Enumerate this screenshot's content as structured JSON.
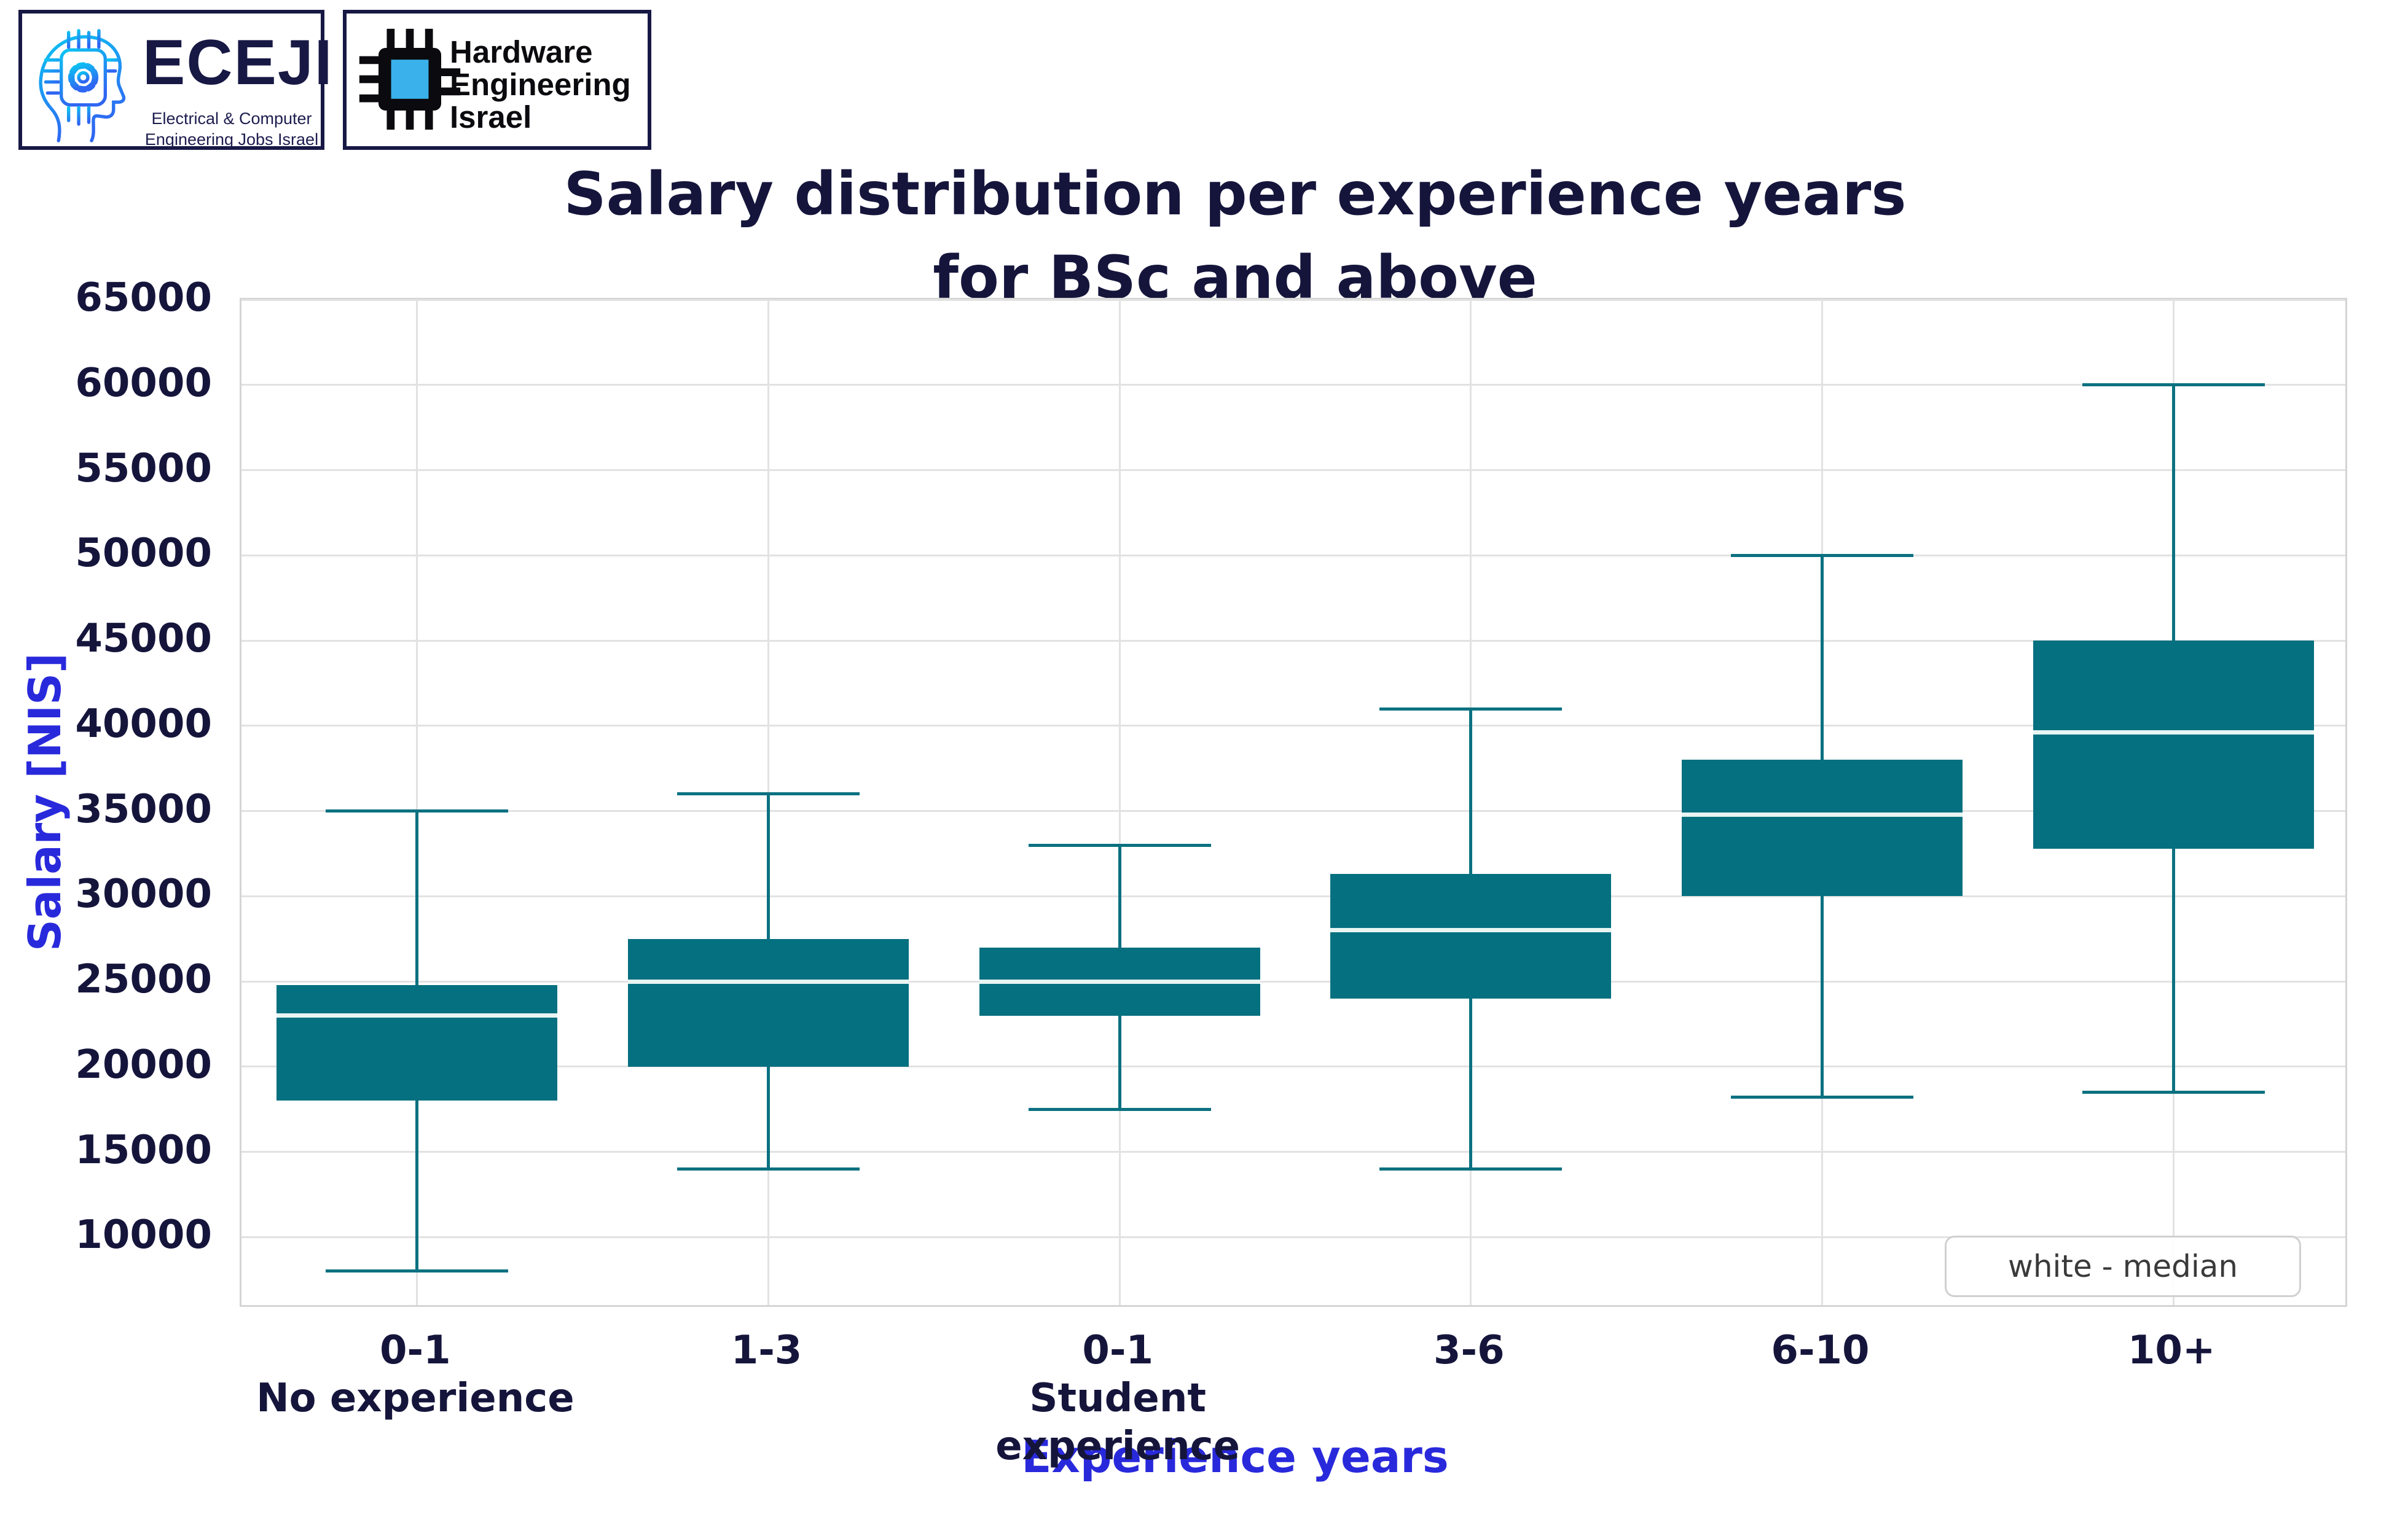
{
  "logos": {
    "eceji": {
      "name": "ECEJI",
      "subtitle_line1": "Electrical  &  Computer",
      "subtitle_line2": "Engineering Jobs Israel",
      "accent_cyan": "#0cc5f2",
      "accent_blue": "#2f66f2",
      "navy": "#181845"
    },
    "hardware_engineering_israel": {
      "line1": "Hardware",
      "line2": "Engineering",
      "line3": "Israel",
      "chip_blue": "#3ab1ea",
      "black": "#0b0b0f"
    }
  },
  "chart_data": {
    "type": "boxplot",
    "title_line1": "Salary distribution per experience years",
    "title_line2": "for BSc and above",
    "ylabel": "Salary [NIS]",
    "xlabel": "Experience years",
    "ylim": [
      5800,
      65000
    ],
    "yticks": [
      10000,
      15000,
      20000,
      25000,
      30000,
      35000,
      40000,
      45000,
      50000,
      55000,
      60000,
      65000
    ],
    "grid": true,
    "legend_label": "white - median",
    "legend_position": "lower right",
    "colors": {
      "box_fill": "#05707f",
      "whisker": "#0b7181",
      "median_line": "#e8f5f3",
      "grid": "#e2e2e2",
      "title_text": "#15153c",
      "tick_text": "#15153c",
      "axis_label_text": "#2929dc"
    },
    "categories": [
      {
        "tick_lines": [
          "0-1",
          "No experience"
        ],
        "whisker_low": 8000,
        "q1": 18000,
        "median": 23000,
        "q3": 24800,
        "whisker_high": 35000
      },
      {
        "tick_lines": [
          "1-3"
        ],
        "whisker_low": 14000,
        "q1": 20000,
        "median": 25000,
        "q3": 27500,
        "whisker_high": 36000
      },
      {
        "tick_lines": [
          "0-1",
          "Student",
          "experience"
        ],
        "whisker_low": 17500,
        "q1": 23000,
        "median": 25000,
        "q3": 27000,
        "whisker_high": 33000
      },
      {
        "tick_lines": [
          "3-6"
        ],
        "whisker_low": 14000,
        "q1": 24000,
        "median": 28000,
        "q3": 31300,
        "whisker_high": 41000
      },
      {
        "tick_lines": [
          "6-10"
        ],
        "whisker_low": 18200,
        "q1": 30000,
        "median": 34800,
        "q3": 38000,
        "whisker_high": 50000
      },
      {
        "tick_lines": [
          "10+"
        ],
        "whisker_low": 18500,
        "q1": 32800,
        "median": 39600,
        "q3": 45000,
        "whisker_high": 60000
      }
    ]
  }
}
